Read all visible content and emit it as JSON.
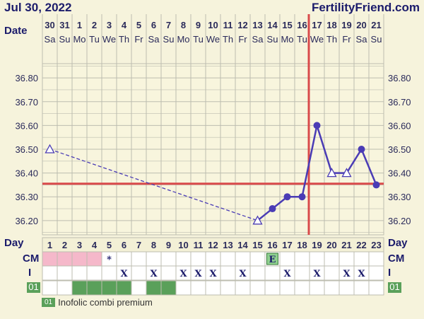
{
  "header": {
    "date": "Jul 30, 2022",
    "site": "FertilityFriend.com"
  },
  "colors": {
    "background": "#f6f3dc",
    "grid": "#bdbdb0",
    "temp_line": "#4a3cb5",
    "coverline": "#d94a4a",
    "ovulation_line": "#d94a4a",
    "cm_pink": "#f5b8ca",
    "med_green": "#5aa05a",
    "egg_white_badge": "#8fd08f"
  },
  "chart_data": {
    "type": "line",
    "row_labels": {
      "date": "Date",
      "day": "Day",
      "cm": "CM",
      "intercourse": "I"
    },
    "dates": [
      "30",
      "31",
      "1",
      "2",
      "3",
      "4",
      "5",
      "6",
      "7",
      "8",
      "9",
      "10",
      "11",
      "12",
      "13",
      "14",
      "15",
      "16",
      "17",
      "18",
      "19",
      "20",
      "21"
    ],
    "weekdays": [
      "Sa",
      "Su",
      "Mo",
      "Tu",
      "We",
      "Th",
      "Fr",
      "Sa",
      "Su",
      "Mo",
      "Tu",
      "We",
      "Th",
      "Fr",
      "Sa",
      "Su",
      "Mo",
      "Tu",
      "We",
      "Th",
      "Fr",
      "Sa",
      "Su"
    ],
    "cycle_days": [
      "1",
      "2",
      "3",
      "4",
      "5",
      "6",
      "7",
      "8",
      "9",
      "10",
      "11",
      "12",
      "13",
      "14",
      "15",
      "16",
      "17",
      "18",
      "19",
      "20",
      "21",
      "22",
      "23"
    ],
    "y_ticks": [
      "36.80",
      "36.70",
      "36.60",
      "36.50",
      "36.40",
      "36.30",
      "36.20"
    ],
    "ylim": [
      36.14,
      36.86
    ],
    "temperatures": [
      {
        "day": 1,
        "value": 36.5,
        "marker": "open-triangle"
      },
      {
        "day": 15,
        "value": 36.2,
        "marker": "open-triangle"
      },
      {
        "day": 16,
        "value": 36.25,
        "marker": "dot"
      },
      {
        "day": 17,
        "value": 36.3,
        "marker": "dot"
      },
      {
        "day": 18,
        "value": 36.3,
        "marker": "dot"
      },
      {
        "day": 19,
        "value": 36.6,
        "marker": "dot"
      },
      {
        "day": 20,
        "value": 36.4,
        "marker": "open-triangle"
      },
      {
        "day": 21,
        "value": 36.4,
        "marker": "open-triangle"
      },
      {
        "day": 22,
        "value": 36.5,
        "marker": "dot"
      },
      {
        "day": 23,
        "value": 36.35,
        "marker": "dot"
      }
    ],
    "dashed_segment": [
      1,
      15
    ],
    "coverline": 36.355,
    "ovulation_day": 18,
    "cm_pink_days": [
      1,
      2,
      3,
      4
    ],
    "cm_marks": [
      {
        "day": 5,
        "text": "*"
      },
      {
        "day": 16,
        "text": "E"
      }
    ],
    "intercourse_days": [
      6,
      8,
      10,
      11,
      12,
      14,
      17,
      19,
      21,
      22
    ],
    "intercourse_mark": "X",
    "medication": {
      "badge": "01",
      "days": [
        3,
        4,
        5,
        6,
        8,
        9
      ],
      "label": "Inofolic combi premium"
    }
  }
}
